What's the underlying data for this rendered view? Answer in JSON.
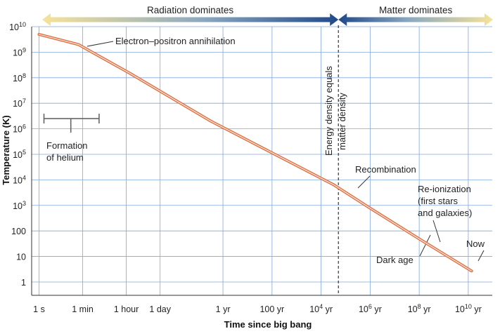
{
  "chart_data": {
    "type": "line",
    "title": "",
    "xlabel": "Time since big bang",
    "ylabel": "Temperature (K)",
    "x_scale": "log",
    "y_scale": "log",
    "xlim_seconds": [
      0.5,
      3e+18
    ],
    "ylim_kelvin": [
      0.3,
      10000000000.0
    ],
    "grid": true,
    "x_ticks": [
      {
        "seconds": 1,
        "base": "1 s",
        "sup": ""
      },
      {
        "seconds": 60,
        "base": "1 min",
        "sup": ""
      },
      {
        "seconds": 3600,
        "base": "1 hour",
        "sup": ""
      },
      {
        "seconds": 86400,
        "base": "1 day",
        "sup": ""
      },
      {
        "seconds": 31560000.0,
        "base": "1 yr",
        "sup": ""
      },
      {
        "seconds": 3156000000.0,
        "base": "100 yr",
        "sup": ""
      },
      {
        "seconds": 315600000000.0,
        "base": "10",
        "sup": "4",
        "suffix": " yr"
      },
      {
        "seconds": 31560000000000.0,
        "base": "10",
        "sup": "6",
        "suffix": " yr"
      },
      {
        "seconds": 3156000000000000.0,
        "base": "10",
        "sup": "8",
        "suffix": " yr"
      },
      {
        "seconds": 3.156e+17,
        "base": "10",
        "sup": "10",
        "suffix": " yr"
      }
    ],
    "y_ticks": [
      {
        "kelvin": 1,
        "base": "1",
        "sup": ""
      },
      {
        "kelvin": 10,
        "base": "10",
        "sup": ""
      },
      {
        "kelvin": 100,
        "base": "100",
        "sup": ""
      },
      {
        "kelvin": 1000,
        "base": "10",
        "sup": "3"
      },
      {
        "kelvin": 10000,
        "base": "10",
        "sup": "4"
      },
      {
        "kelvin": 100000,
        "base": "10",
        "sup": "5"
      },
      {
        "kelvin": 1000000,
        "base": "10",
        "sup": "6"
      },
      {
        "kelvin": 10000000,
        "base": "10",
        "sup": "7"
      },
      {
        "kelvin": 100000000,
        "base": "10",
        "sup": "8"
      },
      {
        "kelvin": 1000000000,
        "base": "10",
        "sup": "9"
      },
      {
        "kelvin": 10000000000,
        "base": "10",
        "sup": "10"
      }
    ],
    "series": [
      {
        "color": "#e06a3c",
        "points": [
          {
            "x": 1,
            "y": 5000000000
          },
          {
            "x": 40,
            "y": 2000000000
          },
          {
            "x": 5000,
            "y": 150000000
          },
          {
            "x": 10000000.0,
            "y": 2000000
          },
          {
            "x": 1000000000000.0,
            "y": 6500
          },
          {
            "x": 30000000000000.0,
            "y": 800
          },
          {
            "x": 3000000000000000.0,
            "y": 50
          },
          {
            "x": 4.3e+17,
            "y": 2.7
          }
        ]
      }
    ],
    "equality_line_seconds": 1600000000000.0,
    "eras": [
      {
        "label": "Radiation dominates",
        "from_seconds": 0.5,
        "to_seconds": 1600000000000.0
      },
      {
        "label": "Matter dominates",
        "from_seconds": 1600000000000.0,
        "to_seconds": 3e+18
      }
    ],
    "helium_formation_range_seconds": [
      1,
      300
    ],
    "helium_formation_kelvin": 2500000,
    "annotations": {
      "annihilation": "Electron–positron annihilation",
      "helium_line1": "Formation",
      "helium_line2": "of helium",
      "equality_line1": "Energy density equals",
      "equality_line2": "matter density",
      "recombination": "Recombination",
      "reionization_line1": "Re-ionization",
      "reionization_line2": "(first stars",
      "reionization_line3": "and galaxies)",
      "dark_age": "Dark age",
      "now": "Now"
    },
    "colors": {
      "curve": "#e06a3c",
      "curve_inner": "#fbe3d6",
      "grid": "#7fa8dd",
      "arrow_light": "#f6e39a",
      "arrow_dark": "#1f4a8a"
    }
  }
}
